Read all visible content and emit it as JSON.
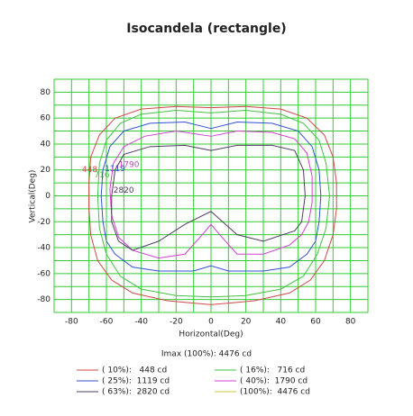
{
  "chart_data": {
    "type": "contour",
    "title": "Isocandela (rectangle)",
    "xlabel": "Horizontal(Deg)",
    "ylabel": "Vertical(Deg)",
    "note": "Imax (100%): 4476 cd",
    "xlim": [
      -90,
      90
    ],
    "ylim": [
      -90,
      90
    ],
    "xticks": [
      -80,
      -60,
      -40,
      -20,
      0,
      20,
      40,
      60,
      80
    ],
    "yticks": [
      -80,
      -60,
      -40,
      -20,
      0,
      20,
      40,
      60,
      80
    ],
    "minor_xticks": [
      -90,
      -70,
      -50,
      -30,
      -10,
      10,
      30,
      50,
      70,
      90
    ],
    "minor_yticks": [
      -90,
      -70,
      -50,
      -30,
      -10,
      10,
      30,
      50,
      70,
      90
    ],
    "grid": true,
    "grid_color": "#3c3",
    "series": [
      {
        "name": "( 10%):   448 cd",
        "label": "448",
        "color": "#d04848",
        "x": [
          0,
          20,
          40,
          55,
          65,
          70,
          72,
          72,
          70,
          65,
          57,
          45,
          25,
          0,
          -25,
          -45,
          -57,
          -65,
          -69,
          -70,
          -70,
          -69,
          -64,
          -55,
          -40,
          -20,
          0
        ],
        "y": [
          68,
          69,
          67,
          60,
          47,
          30,
          10,
          -10,
          -30,
          -50,
          -65,
          -75,
          -81,
          -84,
          -81,
          -75,
          -65,
          -50,
          -30,
          -10,
          10,
          30,
          47,
          60,
          67,
          69,
          68
        ]
      },
      {
        "name": "( 16%):   716 cd",
        "label": "716",
        "color": "#44c044",
        "x": [
          0,
          20,
          40,
          53,
          62,
          66,
          68,
          66,
          61,
          53,
          40,
          20,
          0,
          -20,
          -40,
          -52,
          -60,
          -64,
          -65,
          -64,
          -60,
          -52,
          -40,
          -20,
          0
        ],
        "y": [
          64,
          66,
          63,
          56,
          43,
          25,
          0,
          -25,
          -45,
          -62,
          -72,
          -77,
          -78,
          -77,
          -72,
          -62,
          -45,
          -25,
          0,
          25,
          43,
          56,
          63,
          66,
          64
        ]
      },
      {
        "name": "( 25%):  1119 cd",
        "label": "1119",
        "color": "#3050d0",
        "x": [
          0,
          15,
          35,
          50,
          58,
          62,
          63,
          62,
          60,
          55,
          45,
          30,
          10,
          0,
          -10,
          -30,
          -45,
          -55,
          -60,
          -62,
          -63,
          -62,
          -58,
          -50,
          -35,
          -15,
          0
        ],
        "y": [
          52,
          57,
          56,
          50,
          38,
          20,
          0,
          -20,
          -35,
          -45,
          -55,
          -58,
          -58,
          -54,
          -58,
          -58,
          -55,
          -45,
          -35,
          -20,
          0,
          20,
          38,
          50,
          56,
          57,
          52
        ]
      },
      {
        "name": "( 40%):  1790 cd",
        "label": "1790",
        "color": "#d040d0",
        "x": [
          0,
          15,
          35,
          48,
          55,
          58,
          58,
          56,
          52,
          45,
          30,
          15,
          5,
          0,
          -5,
          -15,
          -30,
          -45,
          -53,
          -57,
          -58,
          -56,
          -50,
          -38,
          -20,
          0
        ],
        "y": [
          46,
          50,
          49,
          44,
          33,
          15,
          -5,
          -20,
          -30,
          -38,
          -45,
          -45,
          -30,
          -22,
          -30,
          -45,
          -48,
          -42,
          -32,
          -15,
          5,
          25,
          38,
          46,
          50,
          46
        ]
      },
      {
        "name": "( 63%):  2820 cd",
        "label": "2820",
        "color": "#503c64",
        "x": [
          0,
          15,
          35,
          48,
          53,
          54,
          52,
          48,
          30,
          15,
          0,
          -15,
          -30,
          -45,
          -53,
          -57,
          -57,
          -55,
          -50,
          -35,
          -15,
          0
        ],
        "y": [
          35,
          39,
          39,
          35,
          20,
          0,
          -20,
          -27,
          -35,
          -30,
          -12,
          -22,
          -35,
          -42,
          -35,
          -20,
          0,
          20,
          32,
          38,
          39,
          35
        ]
      },
      {
        "name": "(100%):  4476 cd",
        "color": "#c8c840"
      }
    ]
  }
}
